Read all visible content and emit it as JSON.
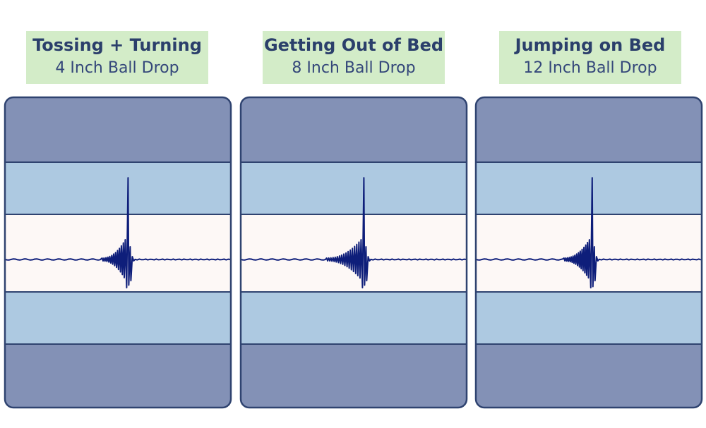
{
  "colors": {
    "outer_band": "#8391b6",
    "inner_band": "#adc9e1",
    "center_band": "#fdf8f6",
    "border": "#2f4370",
    "trace": "#0e1e7a",
    "label_bg": "#d3ecc8",
    "label_text": "#2b3f6b"
  },
  "chart_data": [
    {
      "type": "line",
      "title": "Tossing + Turning",
      "subtitle": "4 Inch Ball Drop",
      "impulse_index": 0.545,
      "peak_up": 0.95,
      "peak_down": 0.52,
      "pre_oscillations": 12,
      "pre_start": 0.43,
      "grid": false
    },
    {
      "type": "line",
      "title": "Getting Out of Bed",
      "subtitle": "8 Inch Ball Drop",
      "impulse_index": 0.545,
      "peak_up": 0.95,
      "peak_down": 0.52,
      "pre_oscillations": 16,
      "pre_start": 0.38,
      "grid": false
    },
    {
      "type": "line",
      "title": "Jumping on Bed",
      "subtitle": "12 Inch Ball Drop",
      "impulse_index": 0.515,
      "peak_up": 0.95,
      "peak_down": 0.55,
      "pre_oscillations": 14,
      "pre_start": 0.39,
      "grid": false
    }
  ]
}
